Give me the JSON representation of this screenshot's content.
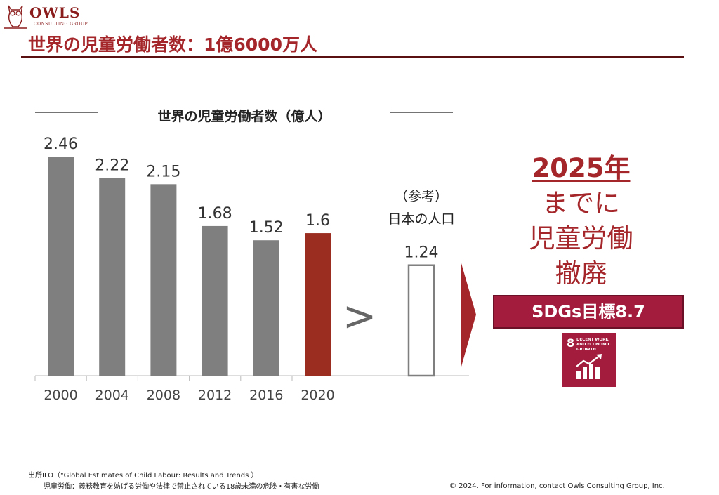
{
  "header": {
    "logo_text": "OWLS",
    "logo_sub": "CONSULTING GROUP",
    "title": "世界の児童労働者数：1億6000万人"
  },
  "chart_data": {
    "type": "bar",
    "title": "世界の児童労働者数（億人）",
    "categories": [
      "2000",
      "2004",
      "2008",
      "2012",
      "2016",
      "2020"
    ],
    "values": [
      2.46,
      2.22,
      2.15,
      1.68,
      1.52,
      1.6
    ],
    "value_labels": [
      "2.46",
      "2.22",
      "2.15",
      "1.68",
      "1.52",
      "1.6"
    ],
    "highlight_category": "2020",
    "colors": {
      "bar": "#7f7f7f",
      "highlight": "#9b2d20"
    },
    "reference": {
      "label_line1": "（参考）",
      "label_line2": "日本の人口",
      "value": 1.24,
      "value_label": "1.24"
    },
    "comparison_symbol": ">",
    "ylim": [
      0,
      2.46
    ],
    "grid": false
  },
  "goal": {
    "year": "2025年",
    "line2": "までに",
    "line3": "児童労働",
    "line4": "撤廃",
    "banner": "SDGs目標8.7",
    "sdg_icon": {
      "number": "8",
      "label": "DECENT WORK AND ECONOMIC GROWTH",
      "icon": "growth-chart-icon"
    },
    "accent_color": "#a5262a"
  },
  "footer": {
    "source_line1": "出所ILO（\"Global Estimates of Child Labour: Results and Trends ）",
    "source_line2": "児童労働：義務教育を妨げる労働や法律で禁止されている18歳未満の危険・有害な労働",
    "copyright": "© 2024. For information, contact Owls Consulting Group, Inc."
  }
}
